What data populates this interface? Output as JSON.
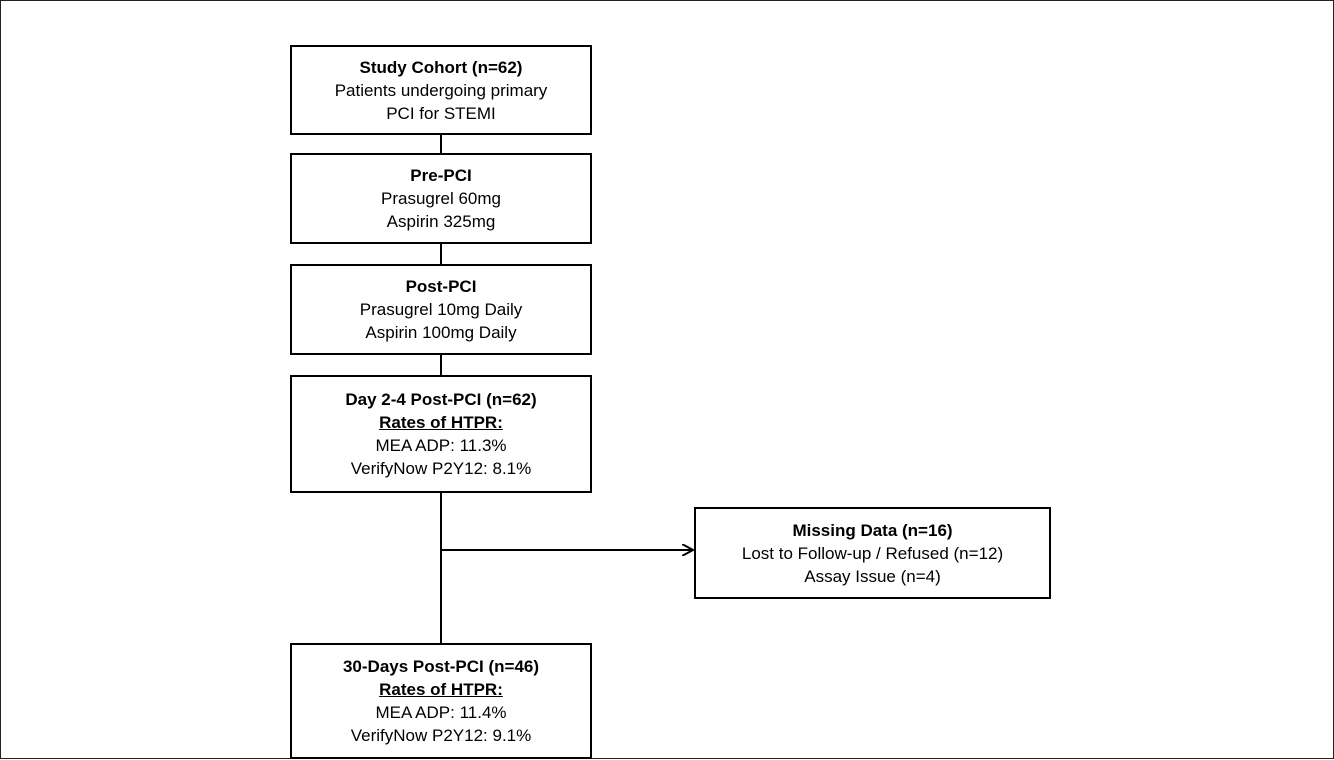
{
  "nodes": {
    "cohort": {
      "title": "Study Cohort (n=62)",
      "lines": [
        "Patients undergoing primary",
        "PCI for STEMI"
      ]
    },
    "prepci": {
      "title": "Pre-PCI",
      "lines": [
        "Prasugrel 60mg",
        "Aspirin 325mg"
      ]
    },
    "postpci": {
      "title": "Post-PCI",
      "lines": [
        "Prasugrel 10mg Daily",
        "Aspirin 100mg Daily"
      ]
    },
    "day24": {
      "title": "Day 2-4 Post-PCI (n=62)",
      "subtitle": "Rates of HTPR:",
      "lines": [
        "MEA ADP: 11.3%",
        "VerifyNow P2Y12: 8.1%"
      ]
    },
    "missing": {
      "title": "Missing Data (n=16)",
      "lines": [
        "Lost to Follow-up / Refused (n=12)",
        "Assay Issue (n=4)"
      ]
    },
    "day30": {
      "title": "30-Days Post-PCI (n=46)",
      "subtitle": "Rates of HTPR:",
      "lines": [
        "MEA ADP: 11.4%",
        "VerifyNow P2Y12: 9.1%"
      ]
    }
  }
}
